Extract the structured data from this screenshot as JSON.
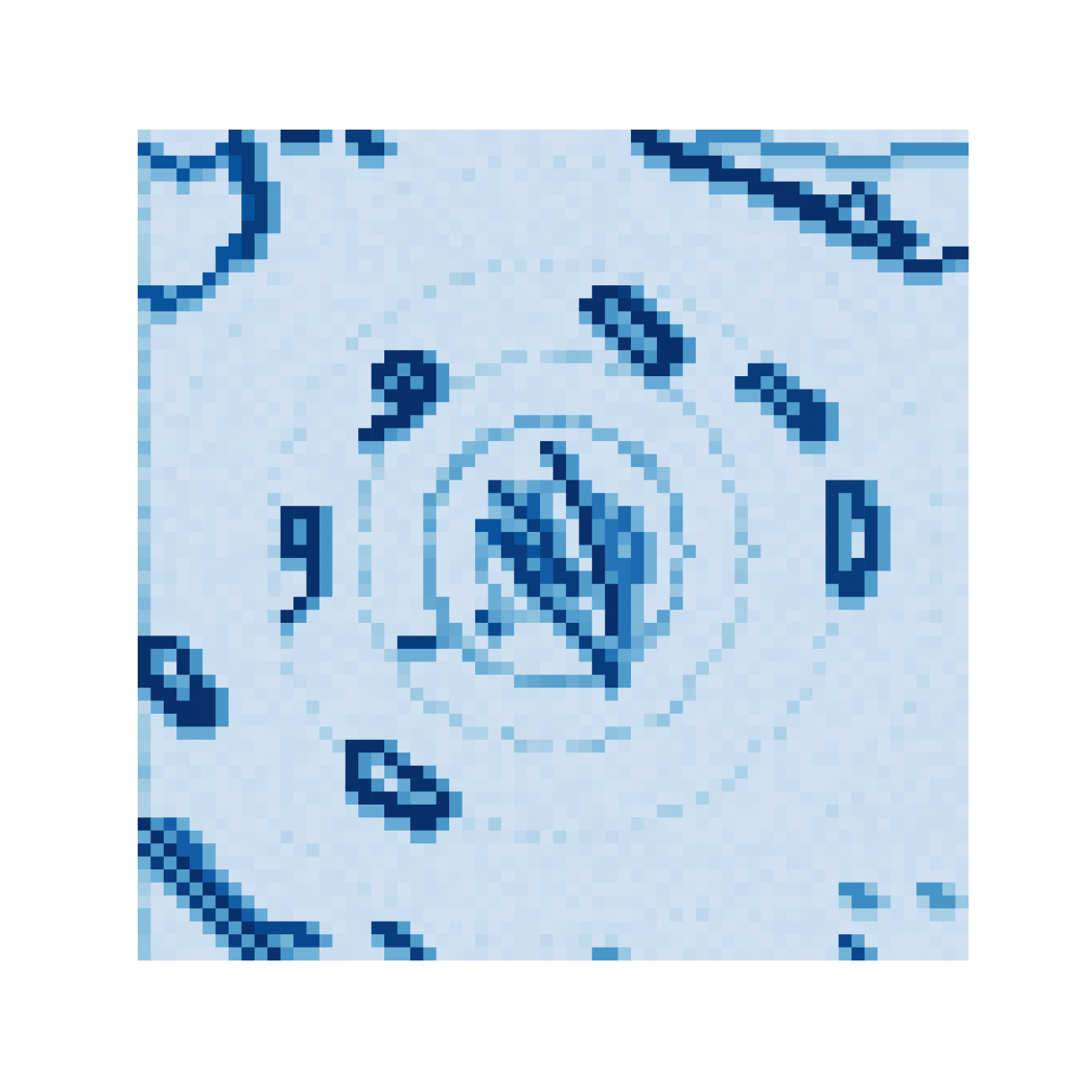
{
  "chart_data": {
    "type": "heatmap",
    "title": "",
    "xlabel": "",
    "ylabel": "",
    "axes_visible": false,
    "colorbar": false,
    "colormap": "Blues",
    "colormap_colors": [
      "#deebf7",
      "#c6dbef",
      "#9ecae1",
      "#6baed6",
      "#4292c6",
      "#2171b5",
      "#08519c",
      "#08306b"
    ],
    "grid": false,
    "rows": 64,
    "cols": 64,
    "value_range": [
      0,
      1
    ],
    "background_value": 0.08,
    "image_description_for_reconstruction": "",
    "strokes": [
      {
        "name": "",
        "points": [
          [
            0,
            1
          ],
          [
            3,
            3
          ],
          [
            6,
            1
          ],
          [
            8,
            4
          ],
          [
            8,
            7
          ],
          [
            5,
            11
          ],
          [
            2,
            13
          ],
          [
            0,
            12
          ]
        ],
        "value": 0.85
      },
      {
        "name": "",
        "points": [
          [
            7,
            0
          ],
          [
            9,
            5
          ],
          [
            8,
            9
          ]
        ],
        "value": 0.95
      },
      {
        "name": "",
        "points": [
          [
            11,
            0
          ],
          [
            13,
            0
          ]
        ],
        "value": 1.0
      },
      {
        "name": "",
        "points": [
          [
            16,
            0
          ],
          [
            18,
            1
          ]
        ],
        "value": 0.95
      },
      {
        "name": "",
        "points": [
          [
            38,
            0
          ],
          [
            42,
            2
          ],
          [
            46,
            3
          ],
          [
            50,
            5
          ],
          [
            54,
            7
          ],
          [
            57,
            9
          ],
          [
            60,
            10
          ],
          [
            63,
            9
          ]
        ],
        "value": 1.0
      },
      {
        "name": "",
        "points": [
          [
            41,
            1
          ],
          [
            45,
            0
          ],
          [
            50,
            1
          ],
          [
            55,
            2
          ],
          [
            60,
            1
          ],
          [
            63,
            1
          ]
        ],
        "value": 0.6
      },
      {
        "name": "",
        "points": [
          [
            50,
            4
          ],
          [
            53,
            6
          ],
          [
            55,
            4
          ],
          [
            57,
            7
          ],
          [
            59,
            8
          ]
        ],
        "value": 1.0
      },
      {
        "name": "",
        "points": [
          [
            34,
            13
          ],
          [
            36,
            12
          ],
          [
            38,
            14
          ],
          [
            40,
            15
          ],
          [
            41,
            17
          ],
          [
            39,
            18
          ],
          [
            37,
            16
          ],
          [
            35,
            14
          ],
          [
            34,
            13
          ]
        ],
        "value": 1.0
      },
      {
        "name": "",
        "points": [
          [
            37,
            12
          ],
          [
            39,
            14
          ],
          [
            40,
            16
          ]
        ],
        "value": 0.95
      },
      {
        "name": "",
        "points": [
          [
            18,
            18
          ],
          [
            20,
            17
          ],
          [
            22,
            18
          ],
          [
            22,
            20
          ],
          [
            20,
            21
          ],
          [
            18,
            19
          ]
        ],
        "value": 1.0
      },
      {
        "name": "",
        "points": [
          [
            20,
            19
          ],
          [
            20,
            22
          ],
          [
            19,
            22
          ],
          [
            17,
            23
          ]
        ],
        "value": 1.0
      },
      {
        "name": "",
        "points": [
          [
            46,
            19
          ],
          [
            48,
            18
          ],
          [
            50,
            20
          ],
          [
            52,
            21
          ],
          [
            52,
            23
          ],
          [
            50,
            22
          ],
          [
            48,
            20
          ]
        ],
        "value": 0.95
      },
      {
        "name": "",
        "points": [
          [
            11,
            29
          ],
          [
            13,
            29
          ],
          [
            13,
            32
          ],
          [
            11,
            32
          ],
          [
            11,
            29
          ]
        ],
        "value": 1.0
      },
      {
        "name": "",
        "points": [
          [
            13,
            31
          ],
          [
            13,
            35
          ],
          [
            11,
            37
          ]
        ],
        "value": 1.0
      },
      {
        "name": "",
        "points": [
          [
            53,
            27
          ],
          [
            55,
            27
          ],
          [
            56,
            31
          ],
          [
            55,
            35
          ],
          [
            53,
            34
          ],
          [
            53,
            30
          ],
          [
            53,
            27
          ]
        ],
        "value": 0.95
      },
      {
        "name": "",
        "points": [
          [
            0,
            39
          ],
          [
            2,
            39
          ],
          [
            4,
            42
          ],
          [
            5,
            44
          ],
          [
            5,
            45
          ],
          [
            3,
            45
          ],
          [
            1,
            43
          ],
          [
            0,
            41
          ],
          [
            0,
            39
          ]
        ],
        "value": 1.0
      },
      {
        "name": "",
        "points": [
          [
            1,
            43
          ],
          [
            3,
            44
          ],
          [
            5,
            43
          ]
        ],
        "value": 1.0
      },
      {
        "name": "",
        "points": [
          [
            16,
            47
          ],
          [
            18,
            47
          ],
          [
            20,
            49
          ],
          [
            22,
            50
          ],
          [
            23,
            51
          ],
          [
            22,
            53
          ],
          [
            20,
            52
          ],
          [
            18,
            51
          ],
          [
            16,
            50
          ],
          [
            16,
            47
          ]
        ],
        "value": 1.0
      },
      {
        "name": "",
        "points": [
          [
            0,
            53
          ],
          [
            2,
            55
          ],
          [
            4,
            57
          ],
          [
            6,
            59
          ],
          [
            8,
            61
          ],
          [
            10,
            63
          ]
        ],
        "value": 1.0
      },
      {
        "name": "",
        "points": [
          [
            0,
            55
          ],
          [
            2,
            57
          ],
          [
            4,
            59
          ],
          [
            6,
            61
          ],
          [
            8,
            63
          ]
        ],
        "value": 0.95
      },
      {
        "name": "",
        "points": [
          [
            2,
            53
          ],
          [
            5,
            57
          ],
          [
            8,
            60
          ]
        ],
        "value": 0.8
      },
      {
        "name": "",
        "points": [
          [
            9,
            61
          ],
          [
            11,
            61
          ],
          [
            13,
            62
          ]
        ],
        "value": 0.9
      },
      {
        "name": "",
        "points": [
          [
            18,
            61
          ],
          [
            20,
            62
          ],
          [
            21,
            63
          ]
        ],
        "value": 0.95
      },
      {
        "name": "",
        "points": [
          [
            31,
            24
          ],
          [
            33,
            27
          ],
          [
            34,
            30
          ],
          [
            35,
            33
          ],
          [
            36,
            36
          ],
          [
            36,
            38
          ]
        ],
        "value": 1.0
      },
      {
        "name": "",
        "points": [
          [
            27,
            27
          ],
          [
            30,
            30
          ],
          [
            32,
            33
          ],
          [
            33,
            35
          ]
        ],
        "value": 0.95
      },
      {
        "name": "",
        "points": [
          [
            28,
            31
          ],
          [
            30,
            35
          ],
          [
            33,
            38
          ],
          [
            35,
            40
          ],
          [
            36,
            42
          ]
        ],
        "value": 0.95
      },
      {
        "name": "",
        "points": [
          [
            26,
            30
          ],
          [
            28,
            31
          ],
          [
            30,
            32
          ]
        ],
        "value": 0.85
      },
      {
        "name": "",
        "points": [
          [
            30,
            28
          ],
          [
            31,
            31
          ],
          [
            31,
            34
          ]
        ],
        "value": 0.8
      },
      {
        "name": "",
        "points": [
          [
            37,
            29
          ],
          [
            38,
            32
          ],
          [
            38,
            34
          ]
        ],
        "value": 0.75
      },
      {
        "name": "",
        "points": [
          [
            35,
            28
          ],
          [
            36,
            31
          ],
          [
            37,
            35
          ],
          [
            37,
            38
          ],
          [
            36,
            41
          ]
        ],
        "value": 0.7
      },
      {
        "name": "",
        "points": [
          [
            26,
            37
          ],
          [
            27,
            38
          ]
        ],
        "value": 0.9
      },
      {
        "name": "",
        "points": [
          [
            20,
            39
          ],
          [
            22,
            39
          ]
        ],
        "value": 0.95
      },
      {
        "name": "",
        "points": [
          [
            54,
            58
          ],
          [
            56,
            59
          ]
        ],
        "value": 0.6
      },
      {
        "name": "",
        "points": [
          [
            60,
            58
          ],
          [
            62,
            59
          ]
        ],
        "value": 0.55
      },
      {
        "name": "",
        "points": [
          [
            54,
            62
          ],
          [
            55,
            63
          ]
        ],
        "value": 0.9
      },
      {
        "name": "",
        "points": [
          [
            35,
            63
          ],
          [
            36,
            63
          ]
        ],
        "value": 0.55
      }
    ],
    "rings": [
      {
        "name": "",
        "center": [
          31.5,
          32
        ],
        "radius": 5.5,
        "value": 0.42,
        "stride": 1
      },
      {
        "name": "",
        "center": [
          31.5,
          32
        ],
        "radius": 10,
        "value": 0.42,
        "stride": 1
      },
      {
        "name": "",
        "center": [
          31.5,
          32
        ],
        "radius": 15,
        "value": 0.3,
        "stride": 2
      },
      {
        "name": "",
        "center": [
          31.5,
          32
        ],
        "radius": 22,
        "value": 0.22,
        "stride": 3
      },
      {
        "name": "",
        "center": [
          31.5,
          32
        ],
        "radius": 30,
        "value": 0.16,
        "stride": 4
      }
    ]
  }
}
